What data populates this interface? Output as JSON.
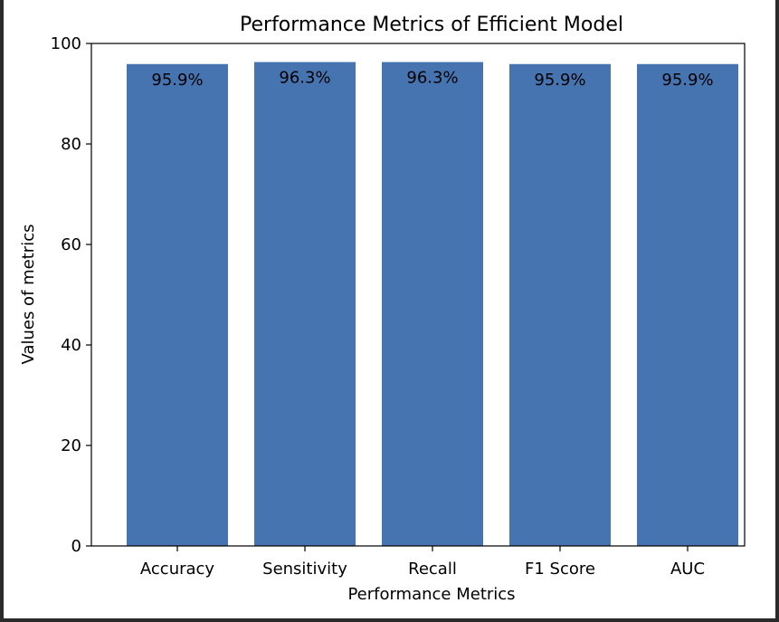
{
  "chart_data": {
    "type": "bar",
    "title": "Performance Metrics of Efficient Model",
    "xlabel": "Performance Metrics",
    "ylabel": "Values of metrics",
    "categories": [
      "Accuracy",
      "Sensitivity",
      "Recall",
      "F1 Score",
      "AUC"
    ],
    "values": [
      95.9,
      96.3,
      96.3,
      95.9,
      95.9
    ],
    "data_labels": [
      "95.9%",
      "96.3%",
      "96.3%",
      "95.9%",
      "95.9%"
    ],
    "ylim": [
      0,
      100
    ],
    "yticks": [
      0,
      20,
      40,
      60,
      80,
      100
    ],
    "ytick_labels": [
      "0",
      "20",
      "40",
      "60",
      "80",
      "100"
    ],
    "grid": false,
    "colors": {
      "bar": "#4674b0",
      "axes": "#000000",
      "background": "#ffffff"
    }
  }
}
